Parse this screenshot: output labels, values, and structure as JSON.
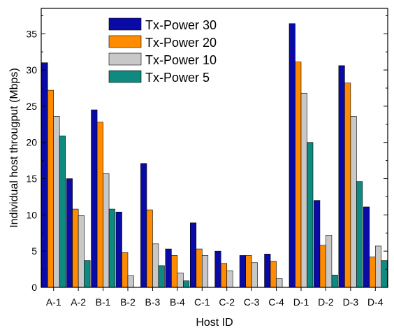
{
  "chart_data": {
    "type": "bar",
    "title": "",
    "xlabel": "Host ID",
    "ylabel": "Individual host througput  (Mbps)",
    "ylim": [
      0,
      38.5
    ],
    "yticks": [
      0,
      5,
      10,
      15,
      20,
      25,
      30,
      35
    ],
    "grid": false,
    "legend_position": "top-left",
    "categories": [
      "A-1",
      "A-2",
      "B-1",
      "B-2",
      "B-3",
      "B-4",
      "C-1",
      "C-2",
      "C-3",
      "C-4",
      "D-1",
      "D-2",
      "D-3",
      "D-4"
    ],
    "series": [
      {
        "name": "Tx-Power 30",
        "color": "#0a0aa6",
        "values": [
          31.0,
          15.0,
          24.5,
          10.4,
          17.1,
          5.3,
          8.9,
          5.0,
          4.4,
          4.6,
          36.4,
          12.0,
          30.6,
          11.1
        ]
      },
      {
        "name": "Tx-Power 20",
        "color": "#ff8c00",
        "values": [
          27.2,
          10.8,
          22.8,
          4.8,
          10.7,
          4.4,
          5.3,
          3.3,
          4.4,
          3.6,
          31.1,
          5.8,
          28.2,
          4.2
        ]
      },
      {
        "name": "Tx-Power 10",
        "color": "#c8c8c8",
        "values": [
          23.6,
          9.9,
          15.7,
          1.6,
          6.0,
          2.0,
          4.4,
          2.3,
          3.4,
          1.2,
          26.8,
          7.2,
          23.6,
          5.7
        ]
      },
      {
        "name": "Tx-Power 5",
        "color": "#0f8a80",
        "values": [
          20.9,
          3.7,
          10.8,
          0.0,
          3.0,
          0.9,
          0.0,
          0.0,
          0.0,
          0.0,
          20.0,
          1.7,
          14.6,
          3.7
        ]
      }
    ]
  }
}
